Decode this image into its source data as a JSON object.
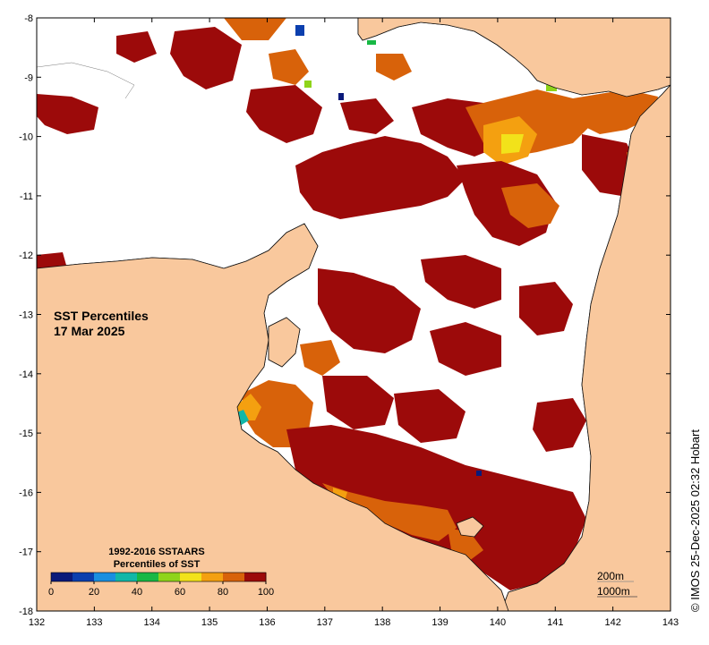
{
  "map": {
    "title": "SST Percentiles",
    "date": "17 Mar 2025",
    "credit": "© IMOS 25-Dec-2025 02:32 Hobart",
    "x_axis": {
      "ticks": [
        "132",
        "133",
        "134",
        "135",
        "136",
        "137",
        "138",
        "139",
        "140",
        "141",
        "142",
        "143"
      ]
    },
    "y_axis": {
      "ticks": [
        "-8",
        "-9",
        "-10",
        "-11",
        "-12",
        "-13",
        "-14",
        "-15",
        "-16",
        "-17",
        "-18"
      ]
    },
    "legend": {
      "title_line1": "1992-2016 SSTAARS",
      "title_line2": "Percentiles of SST",
      "labels": [
        "0",
        "20",
        "40",
        "60",
        "80",
        "100"
      ],
      "colors": [
        "#0a1a7a",
        "#0b3fae",
        "#1a8fe0",
        "#12b7a8",
        "#18b845",
        "#8fd41a",
        "#f2e21a",
        "#f4a010",
        "#d8620a",
        "#9c0a0a"
      ]
    },
    "isobaths": {
      "line1": "200m",
      "line2": "1000m"
    },
    "colors": {
      "land": "#f9c89d",
      "sea_no_data": "#ffffff",
      "coast": "#111111"
    }
  }
}
